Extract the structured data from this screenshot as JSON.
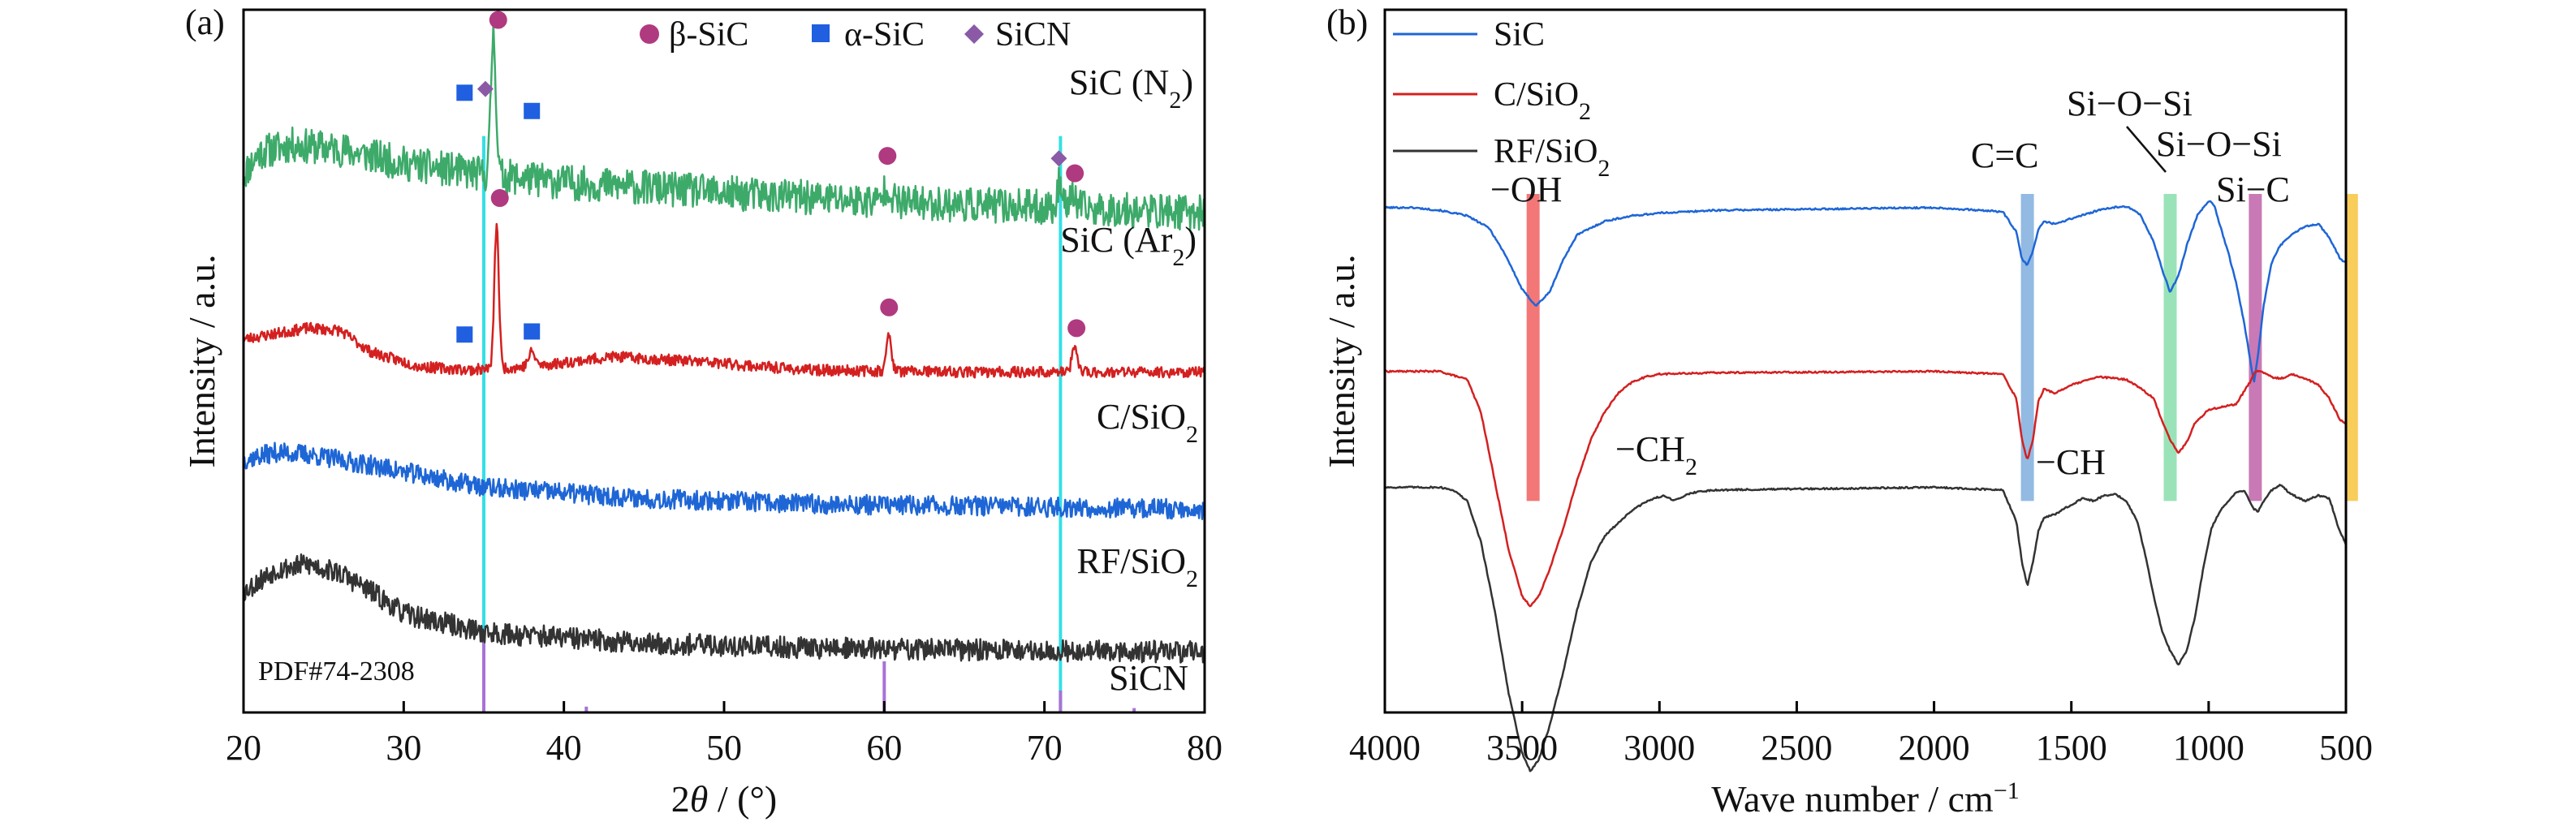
{
  "chart_data": [
    {
      "type": "line",
      "panel_label": "(a)",
      "xlabel_main": "2",
      "xlabel_italic": "θ",
      "xlabel_rest": " / (°)",
      "ylabel": "Intensity / a.u.",
      "xlim": [
        20,
        80
      ],
      "xticks": [
        20,
        30,
        40,
        50,
        60,
        70,
        80
      ],
      "reference_lines_x": [
        35.0,
        71.0
      ],
      "reference_color": "#33e0e6",
      "legend": [
        {
          "label": "β-SiC",
          "marker": "circle",
          "color": "#b03a7f"
        },
        {
          "label": "α-SiC",
          "marker": "square",
          "color": "#1f5fe0"
        },
        {
          "label": "SiCN",
          "marker": "diamond",
          "color": "#8a5aa6"
        }
      ],
      "pdf_card": {
        "label": "PDF#74-2308",
        "color": "#a872d6",
        "sticks": [
          {
            "x": 35.0,
            "height": 1.0
          },
          {
            "x": 41.4,
            "height": 0.08
          },
          {
            "x": 60.0,
            "height": 0.7
          },
          {
            "x": 71.0,
            "height": 0.3
          },
          {
            "x": 75.6,
            "height": 0.06
          }
        ]
      },
      "series": [
        {
          "name": "SiC (N2)",
          "label_main": "SiC (N",
          "label_sub": "2",
          "label_end": ")",
          "color": "#3daa6a",
          "offset": 4.0,
          "noise": 0.16,
          "seed": 11,
          "baseline": {
            "x": [
              20,
              21,
              23,
              26,
              30,
              35,
              40,
              50,
              60,
              70,
              80
            ],
            "y": [
              0.35,
              0.55,
              0.62,
              0.58,
              0.45,
              0.35,
              0.28,
              0.18,
              0.1,
              0.05,
              0.0
            ]
          },
          "peaks": [
            {
              "x": 35.6,
              "h": 1.3,
              "w": 0.22
            },
            {
              "x": 60.2,
              "h": 0.15,
              "w": 0.3
            },
            {
              "x": 71.0,
              "h": 0.28,
              "w": 0.2
            },
            {
              "x": 71.8,
              "h": 0.1,
              "w": 0.3
            }
          ]
        },
        {
          "name": "SiC (Ar2)",
          "label_main": "SiC (Ar",
          "label_sub": "2",
          "label_end": ")",
          "color": "#d42020",
          "offset": 2.55,
          "noise": 0.05,
          "seed": 23,
          "baseline": {
            "x": [
              20,
              22,
              24,
              26,
              28,
              31,
              34,
              38,
              43,
              48,
              55,
              65,
              80
            ],
            "y": [
              0.3,
              0.35,
              0.4,
              0.38,
              0.18,
              0.05,
              0.02,
              0.05,
              0.14,
              0.1,
              0.02,
              0.0,
              0.0
            ]
          },
          "peaks": [
            {
              "x": 35.8,
              "h": 1.3,
              "w": 0.2
            },
            {
              "x": 38.0,
              "h": 0.13,
              "w": 0.3
            },
            {
              "x": 60.3,
              "h": 0.33,
              "w": 0.22
            },
            {
              "x": 71.9,
              "h": 0.22,
              "w": 0.25
            }
          ]
        },
        {
          "name": "C/SiO2",
          "label_main": "C/SiO",
          "label_sub": "2",
          "label_end": "",
          "color": "#1e66d6",
          "offset": 1.3,
          "noise": 0.09,
          "seed": 37,
          "baseline": {
            "x": [
              20,
              22,
              24,
              28,
              35,
              45,
              55,
              65,
              80
            ],
            "y": [
              0.45,
              0.52,
              0.5,
              0.4,
              0.2,
              0.1,
              0.05,
              0.03,
              0.0
            ]
          },
          "peaks": []
        },
        {
          "name": "RF/SiO2",
          "label_main": "RF/SiO",
          "label_sub": "2",
          "label_end": "",
          "color": "#333333",
          "offset": 0.0,
          "noise": 0.1,
          "seed": 53,
          "baseline": {
            "x": [
              20,
              22,
              24,
              26,
              28,
              30,
              35,
              45,
              55,
              65,
              80
            ],
            "y": [
              0.55,
              0.75,
              0.8,
              0.72,
              0.55,
              0.35,
              0.18,
              0.08,
              0.04,
              0.02,
              0.0
            ]
          },
          "peaks": []
        }
      ],
      "markers": [
        {
          "x": 35.9,
          "series": "SiC (N2)",
          "dy": 1.42,
          "type": "circle"
        },
        {
          "x": 35.1,
          "series": "SiC (N2)",
          "dy": 0.78,
          "type": "diamond"
        },
        {
          "x": 33.8,
          "series": "SiC (N2)",
          "dy": 0.72,
          "type": "square"
        },
        {
          "x": 38.0,
          "series": "SiC (N2)",
          "dy": 0.62,
          "type": "square"
        },
        {
          "x": 60.2,
          "series": "SiC (N2)",
          "dy": 0.42,
          "type": "circle"
        },
        {
          "x": 70.9,
          "series": "SiC (N2)",
          "dy": 0.45,
          "type": "diamond"
        },
        {
          "x": 71.9,
          "series": "SiC (N2)",
          "dy": 0.32,
          "type": "circle"
        },
        {
          "x": 36.0,
          "series": "SiC (Ar2)",
          "dy": 1.55,
          "type": "circle"
        },
        {
          "x": 33.8,
          "series": "SiC (Ar2)",
          "dy": 0.32,
          "type": "square"
        },
        {
          "x": 38.0,
          "series": "SiC (Ar2)",
          "dy": 0.32,
          "type": "square"
        },
        {
          "x": 60.3,
          "series": "SiC (Ar2)",
          "dy": 0.58,
          "type": "circle"
        },
        {
          "x": 72.0,
          "series": "SiC (Ar2)",
          "dy": 0.4,
          "type": "circle"
        }
      ],
      "sicn_label": "SiCN"
    },
    {
      "type": "line",
      "panel_label": "(b)",
      "xlabel_main": "Wave number / cm",
      "xlabel_sup": "−1",
      "ylabel": "Intensity / a.u.",
      "xlim": [
        4000,
        500
      ],
      "xticks": [
        4000,
        3500,
        3000,
        2500,
        2000,
        1500,
        1000,
        500
      ],
      "ylim": [
        -3.7,
        1.45
      ],
      "bands": [
        {
          "x": 3460,
          "color": "#f26868"
        },
        {
          "x": 1660,
          "color": "#86b3e0"
        },
        {
          "x": 1140,
          "color": "#8fe0b0"
        },
        {
          "x": 830,
          "color": "#c36aae"
        },
        {
          "x": 480,
          "color": "#f7c848"
        }
      ],
      "series": [
        {
          "name": "SiC",
          "color": "#1e66d6",
          "offset": 0.0,
          "x": [
            4000,
            3900,
            3800,
            3700,
            3620,
            3560,
            3500,
            3450,
            3400,
            3350,
            3300,
            3200,
            3100,
            3000,
            2800,
            2000,
            1750,
            1700,
            1680,
            1660,
            1640,
            1620,
            1600,
            1560,
            1500,
            1400,
            1350,
            1300,
            1250,
            1200,
            1170,
            1140,
            1110,
            1080,
            1040,
            1000,
            980,
            960,
            930,
            900,
            870,
            850,
            835,
            820,
            800,
            770,
            740,
            700,
            650,
            600,
            560,
            520,
            500,
            480,
            470,
            460,
            450,
            430,
            410,
            400
          ],
          "y": [
            0.0,
            0.0,
            -0.02,
            -0.06,
            -0.15,
            -0.35,
            -0.6,
            -0.72,
            -0.62,
            -0.38,
            -0.2,
            -0.1,
            -0.06,
            -0.04,
            -0.02,
            0.0,
            -0.03,
            -0.18,
            -0.38,
            -0.42,
            -0.32,
            -0.16,
            -0.1,
            -0.12,
            -0.08,
            -0.02,
            0.0,
            0.01,
            -0.05,
            -0.25,
            -0.45,
            -0.62,
            -0.5,
            -0.28,
            -0.05,
            0.05,
            0.02,
            -0.12,
            -0.32,
            -0.55,
            -0.85,
            -1.1,
            -1.28,
            -1.08,
            -0.72,
            -0.4,
            -0.28,
            -0.2,
            -0.14,
            -0.12,
            -0.22,
            -0.38,
            -0.4,
            -0.24,
            -0.1,
            -0.04,
            0.0,
            0.05,
            0.02,
            0.0
          ]
        },
        {
          "name": "C/SiO2",
          "color": "#d42020",
          "offset": -1.2,
          "x": [
            4000,
            3800,
            3700,
            3650,
            3600,
            3550,
            3500,
            3470,
            3440,
            3400,
            3350,
            3300,
            3250,
            3200,
            3150,
            3100,
            3050,
            3000,
            2800,
            2000,
            1750,
            1700,
            1680,
            1660,
            1640,
            1620,
            1600,
            1560,
            1500,
            1400,
            1300,
            1250,
            1200,
            1170,
            1140,
            1110,
            1080,
            1050,
            1000,
            950,
            900,
            850,
            830,
            810,
            790,
            760,
            730,
            700,
            650,
            600,
            560,
            520,
            500,
            480,
            470,
            460,
            450,
            430,
            400
          ],
          "y": [
            0.0,
            0.0,
            -0.06,
            -0.3,
            -0.8,
            -1.3,
            -1.65,
            -1.72,
            -1.65,
            -1.45,
            -1.15,
            -0.8,
            -0.5,
            -0.3,
            -0.16,
            -0.08,
            -0.04,
            -0.02,
            -0.01,
            0.0,
            -0.02,
            -0.2,
            -0.5,
            -0.65,
            -0.5,
            -0.22,
            -0.13,
            -0.16,
            -0.1,
            -0.04,
            -0.06,
            -0.12,
            -0.2,
            -0.36,
            -0.5,
            -0.6,
            -0.52,
            -0.38,
            -0.28,
            -0.26,
            -0.24,
            -0.08,
            0.0,
            0.0,
            -0.02,
            -0.05,
            -0.05,
            -0.02,
            -0.05,
            -0.1,
            -0.2,
            -0.36,
            -0.38,
            -0.2,
            -0.08,
            -0.02,
            0.02,
            0.05,
            0.0
          ]
        },
        {
          "name": "RF/SiO2",
          "color": "#333333",
          "offset": -2.05,
          "x": [
            4000,
            3800,
            3750,
            3700,
            3650,
            3600,
            3550,
            3500,
            3470,
            3440,
            3400,
            3350,
            3300,
            3250,
            3200,
            3150,
            3100,
            3060,
            3020,
            2980,
            2950,
            2920,
            2880,
            2850,
            2800,
            2000,
            1750,
            1700,
            1680,
            1660,
            1640,
            1620,
            1600,
            1560,
            1520,
            1490,
            1460,
            1420,
            1380,
            1340,
            1300,
            1260,
            1230,
            1200,
            1170,
            1140,
            1110,
            1080,
            1050,
            1020,
            990,
            960,
            930,
            900,
            870,
            840,
            820,
            800,
            770,
            740,
            700,
            650,
            600,
            560,
            530,
            500,
            485,
            470,
            460,
            450,
            430,
            400
          ],
          "y": [
            0.0,
            0.0,
            -0.02,
            -0.1,
            -0.4,
            -0.9,
            -1.5,
            -1.95,
            -2.08,
            -2.0,
            -1.75,
            -1.35,
            -0.9,
            -0.55,
            -0.36,
            -0.26,
            -0.17,
            -0.12,
            -0.08,
            -0.06,
            -0.1,
            -0.07,
            -0.04,
            -0.03,
            -0.02,
            0.0,
            -0.02,
            -0.25,
            -0.55,
            -0.72,
            -0.55,
            -0.32,
            -0.22,
            -0.2,
            -0.15,
            -0.12,
            -0.08,
            -0.1,
            -0.06,
            -0.05,
            -0.1,
            -0.25,
            -0.5,
            -0.8,
            -1.05,
            -1.2,
            -1.3,
            -1.2,
            -0.95,
            -0.6,
            -0.3,
            -0.18,
            -0.1,
            -0.04,
            -0.02,
            -0.15,
            -0.18,
            -0.1,
            -0.02,
            0.02,
            -0.05,
            -0.1,
            -0.06,
            -0.08,
            -0.28,
            -0.42,
            -0.28,
            -0.08,
            0.0,
            0.05,
            0.02,
            0.0
          ]
        }
      ],
      "legend": [
        {
          "label_main": "SiC",
          "label_sub": "",
          "color": "#1e66d6"
        },
        {
          "label_main": "C/SiO",
          "label_sub": "2",
          "color": "#d42020"
        },
        {
          "label_main": "RF/SiO",
          "label_sub": "2",
          "color": "#333333"
        }
      ],
      "annotations": {
        "oh": "−OH",
        "ch2_main": "−CH",
        "ch2_sub": "2",
        "ch": "−CH",
        "cc": "C=C",
        "sios1": "Si−O−Si",
        "sios2": "Si−O−Si",
        "sic": "Si−C"
      }
    }
  ]
}
